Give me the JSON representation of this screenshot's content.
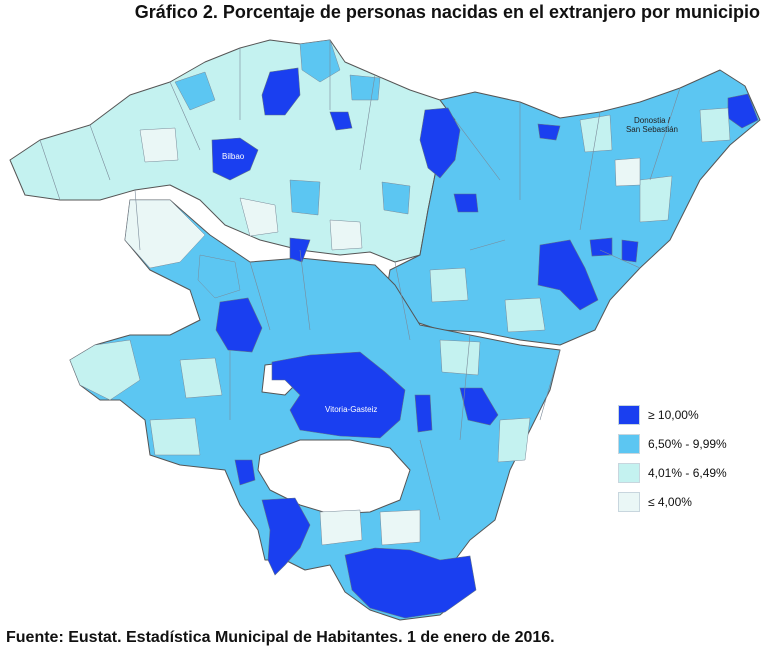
{
  "title": "Gráfico 2. Porcentaje de personas nacidas en el extranjero por municipio",
  "source": "Fuente: Eustat. Estadística Municipal de Habitantes. 1 de enero de 2016.",
  "cities": {
    "bilbao": "Bilbao",
    "donostia_line1": "Donostia /",
    "donostia_line2": "San Sebastián",
    "vitoria": "Vitoria-Gasteiz"
  },
  "legend": [
    {
      "label": "≥ 10,00%",
      "color": "#1a3ff0"
    },
    {
      "label": "6,50% - 9,99%",
      "color": "#5cc6f2"
    },
    {
      "label": "4,01% - 6,49%",
      "color": "#c4f2f0"
    },
    {
      "label": "≤ 4,00%",
      "color": "#eaf7f6"
    }
  ]
}
